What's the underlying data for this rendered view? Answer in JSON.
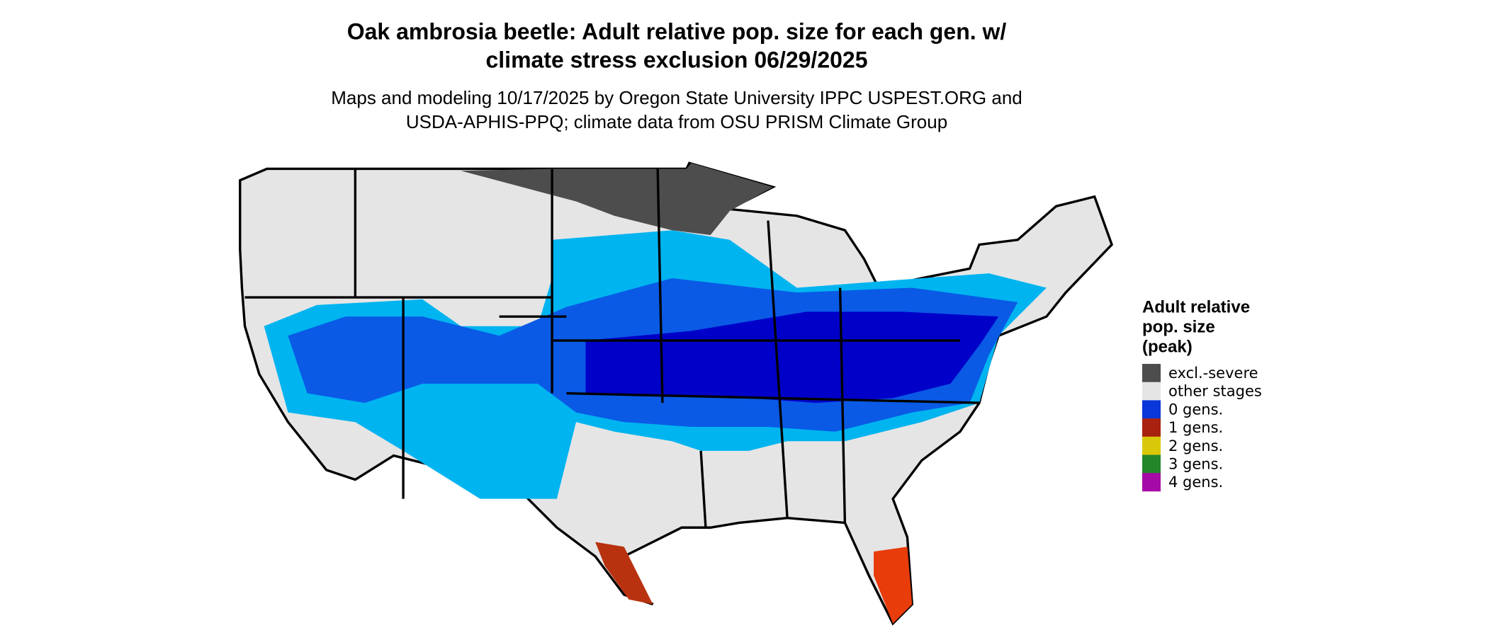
{
  "title": {
    "lines": [
      "Oak ambrosia beetle: Adult relative pop. size for each gen. w/",
      "climate stress exclusion 06/29/2025"
    ]
  },
  "subtitle": {
    "lines": [
      "Maps and modeling 10/17/2025 by Oregon State University IPPC USPEST.ORG and",
      "USDA-APHIS-PPQ; climate data from OSU PRISM Climate Group"
    ]
  },
  "legend": {
    "title": {
      "lines": [
        "Adult relative",
        "pop. size",
        "(peak)"
      ]
    },
    "items": [
      {
        "label": "excl.-severe",
        "color": "#4d4d4d"
      },
      {
        "label": "other stages",
        "color": "#e5e5e5"
      },
      {
        "label": "0 gens.",
        "color": "#0a37d9"
      },
      {
        "label": "1 gens.",
        "color": "#a8220f"
      },
      {
        "label": "2 gens.",
        "color": "#d9c80a"
      },
      {
        "label": "3 gens.",
        "color": "#23872a"
      },
      {
        "label": "4 gens.",
        "color": "#a60aa6"
      }
    ]
  }
}
